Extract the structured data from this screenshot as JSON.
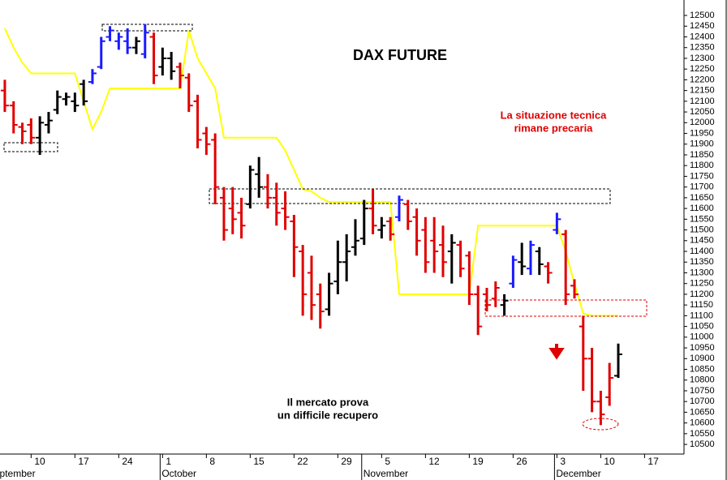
{
  "chart_data": {
    "type": "ohlc",
    "title": "DAX FUTURE",
    "annotations": [
      {
        "lines": [
          "La situazione tecnica",
          "rimane precaria"
        ],
        "color": "#e00000"
      },
      {
        "lines": [
          "Il mercato prova",
          "un difficile recupero"
        ],
        "color": "#000000"
      }
    ],
    "bars": {
      "open": [
        12150,
        12080,
        11980,
        11990,
        11930,
        11990,
        12060,
        12110,
        12100,
        12180,
        12190,
        12260,
        12400,
        12380,
        12380,
        12350,
        12320,
        12400,
        12260,
        12300,
        12260,
        12210,
        12100,
        11950,
        11920,
        11650,
        11600,
        11580,
        11620,
        11760,
        11700,
        11650,
        11600,
        11540,
        11400,
        11300,
        11200,
        11130,
        11260,
        11350,
        11420,
        11460,
        11600,
        11500,
        11540,
        11560,
        11620,
        11560,
        11500,
        11450,
        11430,
        11400,
        11430,
        11380,
        11200,
        11200,
        11180,
        11150,
        11250,
        11350,
        11320,
        11400,
        11330,
        11500,
        11480,
        11240,
        11050,
        10900,
        10700,
        10720,
        10820
      ],
      "high": [
        12200,
        12100,
        12000,
        12020,
        12030,
        12050,
        12150,
        12140,
        12140,
        12200,
        12250,
        12400,
        12450,
        12420,
        12440,
        12400,
        12460,
        12420,
        12350,
        12330,
        12280,
        12230,
        12130,
        11980,
        11950,
        11700,
        11700,
        11650,
        11800,
        11840,
        11760,
        11720,
        11680,
        11570,
        11430,
        11380,
        11250,
        11300,
        11450,
        11480,
        11550,
        11640,
        11690,
        11560,
        11560,
        11660,
        11640,
        11600,
        11560,
        11560,
        11520,
        11480,
        11450,
        11400,
        11240,
        11230,
        11260,
        11200,
        11380,
        11440,
        11450,
        11420,
        11350,
        11580,
        11500,
        11270,
        11100,
        10950,
        10750,
        10880,
        10970
      ],
      "low": [
        12050,
        11950,
        11900,
        11900,
        11850,
        11950,
        12040,
        12080,
        12050,
        12080,
        12180,
        12250,
        12380,
        12340,
        12320,
        12320,
        12300,
        12180,
        12220,
        12200,
        12160,
        12050,
        11880,
        11850,
        11620,
        11450,
        11480,
        11460,
        11600,
        11650,
        11600,
        11520,
        11500,
        11280,
        11100,
        11080,
        11040,
        11100,
        11200,
        11260,
        11380,
        11430,
        11480,
        11460,
        11450,
        11540,
        11500,
        11380,
        11300,
        11300,
        11280,
        11250,
        11280,
        11150,
        11010,
        11120,
        11140,
        11100,
        11230,
        11290,
        11290,
        11290,
        11250,
        11480,
        11150,
        11180,
        10750,
        10650,
        10590,
        10680,
        10810
      ],
      "close": [
        12080,
        11990,
        11960,
        11930,
        12000,
        12010,
        12120,
        12120,
        12080,
        12100,
        12230,
        12380,
        12430,
        12400,
        12350,
        12380,
        12420,
        12220,
        12300,
        12240,
        12220,
        12080,
        11920,
        11900,
        11700,
        11500,
        11550,
        11520,
        11780,
        11700,
        11650,
        11580,
        11560,
        11420,
        11200,
        11150,
        11120,
        11250,
        11350,
        11400,
        11450,
        11600,
        11520,
        11520,
        11480,
        11640,
        11540,
        11450,
        11350,
        11400,
        11350,
        11440,
        11320,
        11200,
        11050,
        11150,
        11230,
        11170,
        11360,
        11330,
        11430,
        11340,
        11300,
        11550,
        11200,
        11200,
        10900,
        10700,
        10640,
        10810,
        10920
      ],
      "color": [
        "#e00000",
        "#e00000",
        "#e00000",
        "#e00000",
        "#000000",
        "#000000",
        "#000000",
        "#000000",
        "#000000",
        "#000000",
        "#1a1aff",
        "#1a1aff",
        "#1a1aff",
        "#1a1aff",
        "#1a1aff",
        "#000000",
        "#1a1aff",
        "#e00000",
        "#000000",
        "#000000",
        "#e00000",
        "#e00000",
        "#e00000",
        "#e00000",
        "#e00000",
        "#e00000",
        "#e00000",
        "#e00000",
        "#000000",
        "#000000",
        "#e00000",
        "#e00000",
        "#e00000",
        "#e00000",
        "#e00000",
        "#e00000",
        "#e00000",
        "#000000",
        "#000000",
        "#000000",
        "#000000",
        "#000000",
        "#e00000",
        "#000000",
        "#e00000",
        "#1a1aff",
        "#e00000",
        "#e00000",
        "#e00000",
        "#e00000",
        "#e00000",
        "#000000",
        "#e00000",
        "#e00000",
        "#e00000",
        "#e00000",
        "#e00000",
        "#000000",
        "#1a1aff",
        "#000000",
        "#1a1aff",
        "#000000",
        "#e00000",
        "#1a1aff",
        "#e00000",
        "#e00000",
        "#e00000",
        "#e00000",
        "#e00000",
        "#e00000",
        "#000000"
      ]
    },
    "overlay": {
      "color": "#ffff00",
      "values": [
        12440,
        12350,
        12280,
        12230,
        12230,
        12230,
        12230,
        12230,
        12230,
        12100,
        11970,
        12050,
        12160,
        12160,
        12160,
        12160,
        12160,
        12160,
        12160,
        12160,
        12160,
        12430,
        12300,
        12230,
        12160,
        11930,
        11930,
        11930,
        11930,
        11930,
        11930,
        11930,
        11870,
        11780,
        11690,
        11680,
        11650,
        11630,
        11630,
        11630,
        11630,
        11630,
        11630,
        11630,
        11630,
        11200,
        11200,
        11200,
        11200,
        11200,
        11200,
        11200,
        11200,
        11200,
        11520,
        11520,
        11520,
        11520,
        11520,
        11520,
        11520,
        11520,
        11520,
        11520,
        11400,
        11250,
        11110,
        11100,
        11100,
        11100,
        11100
      ]
    },
    "xlim": [
      -0.55,
      77.5
    ],
    "xticks": [
      {
        "value": 3,
        "label": "10"
      },
      {
        "value": 8,
        "label": "17"
      },
      {
        "value": 13,
        "label": "24"
      },
      {
        "value": 18,
        "label": "1"
      },
      {
        "value": 23,
        "label": "8"
      },
      {
        "value": 28,
        "label": "15"
      },
      {
        "value": 33,
        "label": "22"
      },
      {
        "value": 38,
        "label": "29"
      },
      {
        "value": 43,
        "label": "5"
      },
      {
        "value": 48,
        "label": "12"
      },
      {
        "value": 53,
        "label": "19"
      },
      {
        "value": 58,
        "label": "26"
      },
      {
        "value": 63,
        "label": "3"
      },
      {
        "value": 68,
        "label": "10"
      },
      {
        "value": 73,
        "label": "17"
      }
    ],
    "months": [
      {
        "value": -0.5,
        "label": "ptember"
      },
      {
        "value": 18,
        "label": "October"
      },
      {
        "value": 41,
        "label": "November"
      },
      {
        "value": 63,
        "label": "December"
      }
    ],
    "ylim": [
      10455,
      12572
    ],
    "yticks": [
      10500,
      10550,
      10600,
      10650,
      10700,
      10750,
      10800,
      10850,
      10900,
      10950,
      11000,
      11050,
      11100,
      11150,
      11200,
      11250,
      11300,
      11350,
      11400,
      11450,
      11500,
      11550,
      11600,
      11650,
      11700,
      11750,
      11800,
      11850,
      11900,
      11950,
      12000,
      12050,
      12100,
      12150,
      12200,
      12250,
      12300,
      12350,
      12400,
      12450,
      12500
    ]
  }
}
